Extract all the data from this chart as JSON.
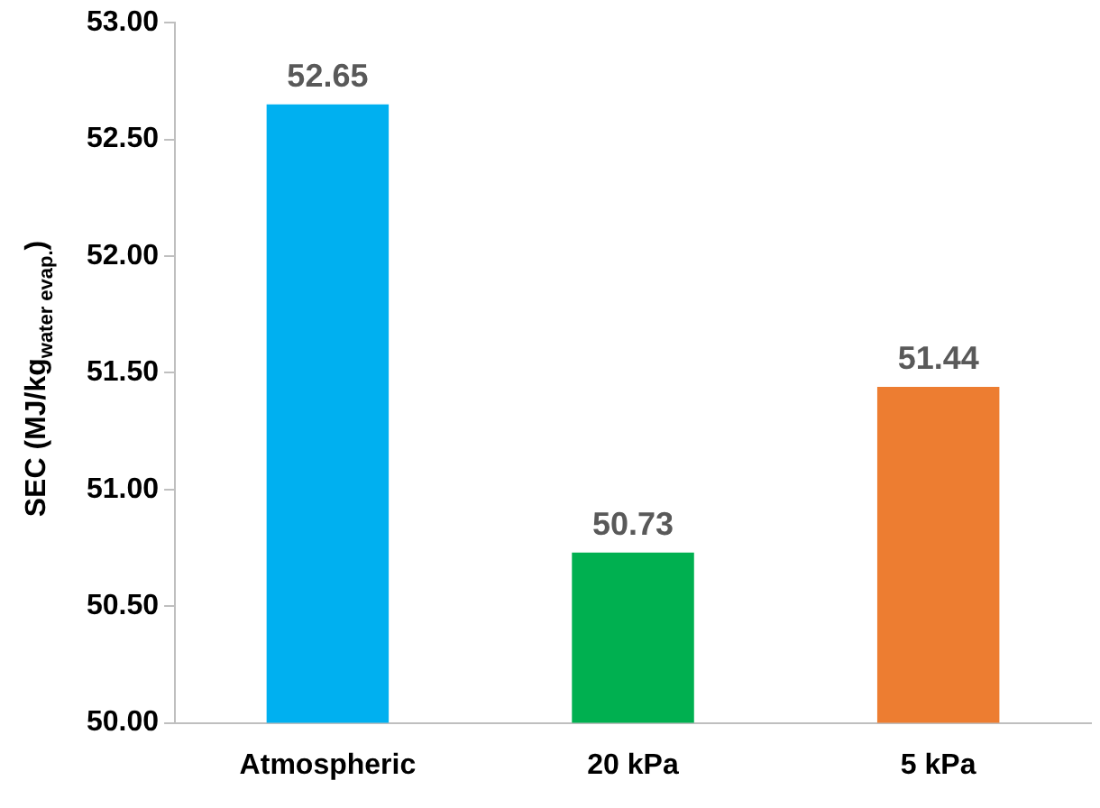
{
  "chart_data": {
    "type": "bar",
    "ylabel": "SEC  (MJ/kg$_{water evap.}$)",
    "categories": [
      "Atmospheric",
      "20 kPa",
      "5 kPa"
    ],
    "values": [
      52.65,
      50.73,
      51.44
    ],
    "colors": [
      "#00b0f0",
      "#00b050",
      "#ed7d31"
    ],
    "ylim": [
      50,
      53
    ],
    "yticks": [
      {
        "value": 50,
        "label": "50.00"
      },
      {
        "value": 50.5,
        "label": "50.50"
      },
      {
        "value": 51,
        "label": "51.00"
      },
      {
        "value": 51.5,
        "label": "51.50"
      },
      {
        "value": 52,
        "label": "52.00"
      },
      {
        "value": 52.5,
        "label": "52.50"
      },
      {
        "value": 53,
        "label": "53.00"
      }
    ],
    "data_labels": true,
    "grid": false,
    "legend": false
  }
}
